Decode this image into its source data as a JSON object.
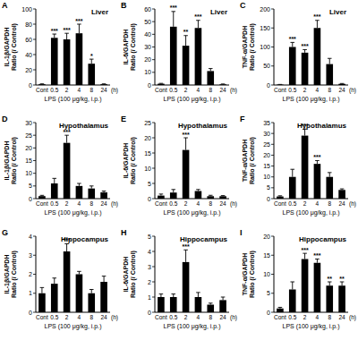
{
  "chart_data": [
    {
      "type": "bar",
      "panel": "A",
      "title": "Liver",
      "ylabel": [
        "IL-1β/GAPDH",
        "Ratio (/ Control)"
      ],
      "xlabel": "LPS (100 μg/kg, i.p.)",
      "x_unit": "(h)",
      "categories": [
        "Cont",
        "0.5",
        "2",
        "4",
        "8",
        "24"
      ],
      "values": [
        1,
        62,
        60,
        68,
        28,
        1
      ],
      "errors": [
        0.5,
        5,
        8,
        12,
        6,
        0.5
      ],
      "significance": [
        null,
        "***",
        "***",
        "***",
        "*",
        null
      ],
      "color": "#000000",
      "ylim": [
        0,
        100
      ],
      "yticks": [
        0,
        20,
        40,
        60,
        80,
        100
      ]
    },
    {
      "type": "bar",
      "panel": "B",
      "title": "Liver",
      "ylabel": [
        "IL-6/GAPDH",
        "Ratio (/ Control)"
      ],
      "xlabel": "LPS (100 μg/kg, i.p.)",
      "x_unit": "(h)",
      "categories": [
        "Cont",
        "0.5",
        "2",
        "4",
        "8",
        "24"
      ],
      "values": [
        1,
        46,
        31,
        45,
        11,
        0.5
      ],
      "errors": [
        0.3,
        12,
        8,
        6,
        2,
        0.3
      ],
      "significance": [
        null,
        "***",
        "**",
        "***",
        null,
        null
      ],
      "color": "#000000",
      "ylim": [
        0,
        60
      ],
      "yticks": [
        0,
        10,
        20,
        30,
        40,
        50,
        60
      ]
    },
    {
      "type": "bar",
      "panel": "C",
      "title": "Liver",
      "ylabel": [
        "TNF-α/GAPDH",
        "Ratio (/ Control)"
      ],
      "xlabel": "LPS (100 μg/kg, i.p.)",
      "x_unit": "(h)",
      "categories": [
        "Cont",
        "0.5",
        "2",
        "4",
        "8",
        "24"
      ],
      "values": [
        1,
        100,
        85,
        150,
        55,
        3
      ],
      "errors": [
        0.5,
        12,
        8,
        20,
        15,
        1
      ],
      "significance": [
        null,
        "***",
        "***",
        "***",
        null,
        null
      ],
      "color": "#000000",
      "ylim": [
        0,
        200
      ],
      "yticks": [
        0,
        50,
        100,
        150,
        200
      ]
    },
    {
      "type": "bar",
      "panel": "D",
      "title": "Hypothalamus",
      "ylabel": [
        "IL-1β/GAPDH",
        "Ratio (/ Control)"
      ],
      "xlabel": "LPS (100 μg/kg, i.p.)",
      "x_unit": "(h)",
      "categories": [
        "Cont",
        "0.5",
        "2",
        "4",
        "8",
        "24"
      ],
      "values": [
        1,
        6,
        22,
        5,
        4,
        2.5
      ],
      "errors": [
        0.3,
        2,
        3,
        1,
        1,
        0.5
      ],
      "significance": [
        null,
        null,
        "***",
        null,
        null,
        null
      ],
      "color": "#000000",
      "ylim": [
        0,
        30
      ],
      "yticks": [
        0,
        5,
        10,
        15,
        20,
        25,
        30
      ]
    },
    {
      "type": "bar",
      "panel": "E",
      "title": "Hypothalamus",
      "ylabel": [
        "IL-6/GAPDH",
        "Ratio (/ Control)"
      ],
      "xlabel": "LPS (100 μg/kg, i.p.)",
      "x_unit": "(h)",
      "categories": [
        "Cont",
        "0.5",
        "2",
        "4",
        "8",
        "24"
      ],
      "values": [
        1,
        2,
        16,
        2.5,
        0.8,
        0.8
      ],
      "errors": [
        0.5,
        1,
        4,
        0.5,
        0.3,
        0.2
      ],
      "significance": [
        null,
        null,
        "***",
        null,
        null,
        null
      ],
      "color": "#000000",
      "ylim": [
        0,
        25
      ],
      "yticks": [
        0,
        5,
        10,
        15,
        20,
        25
      ]
    },
    {
      "type": "bar",
      "panel": "F",
      "title": "Hypothalamus",
      "ylabel": [
        "TNF-α/GAPDH",
        "Ratio (/ Control)"
      ],
      "xlabel": "LPS (100 μg/kg, i.p.)",
      "x_unit": "(h)",
      "categories": [
        "Cont",
        "0.5",
        "2",
        "4",
        "8",
        "24"
      ],
      "values": [
        1,
        10,
        29,
        16,
        10,
        4
      ],
      "errors": [
        0.3,
        3.5,
        3,
        1.5,
        2,
        0.5
      ],
      "significance": [
        null,
        null,
        "***",
        "***",
        null,
        null
      ],
      "color": "#000000",
      "ylim": [
        0,
        35
      ],
      "yticks": [
        0,
        5,
        10,
        15,
        20,
        25,
        30,
        35
      ]
    },
    {
      "type": "bar",
      "panel": "G",
      "title": "Hippocampus",
      "ylabel": [
        "IL-1β/GAPDH",
        "Ratio (/ Control)"
      ],
      "xlabel": "LPS (100 μg/kg, i.p.)",
      "x_unit": "(h)",
      "categories": [
        "Cont",
        "0.5",
        "2",
        "4",
        "8",
        "24"
      ],
      "values": [
        1,
        1.5,
        3.2,
        2,
        1,
        1.6
      ],
      "errors": [
        0.3,
        0.3,
        0.4,
        0.15,
        0.2,
        0.3
      ],
      "significance": [
        null,
        null,
        "***",
        null,
        null,
        null
      ],
      "color": "#000000",
      "ylim": [
        0,
        4
      ],
      "yticks": [
        0,
        1,
        2,
        3,
        4
      ]
    },
    {
      "type": "bar",
      "panel": "H",
      "title": "Hippocampus",
      "ylabel": [
        "IL-6/GAPDH",
        "Ratio (/ Control)"
      ],
      "xlabel": "LPS (100 μg/kg, i.p.)",
      "x_unit": "(h)",
      "categories": [
        "Cont",
        "0.5",
        "2",
        "4",
        "8",
        "24"
      ],
      "values": [
        1,
        1,
        3.3,
        1,
        0.5,
        0.8
      ],
      "errors": [
        0.2,
        0.2,
        0.8,
        0.3,
        0.1,
        0.2
      ],
      "significance": [
        null,
        null,
        "***",
        null,
        null,
        null
      ],
      "color": "#000000",
      "ylim": [
        0,
        5
      ],
      "yticks": [
        0,
        1,
        2,
        3,
        4,
        5
      ]
    },
    {
      "type": "bar",
      "panel": "I",
      "title": "Hippocampus",
      "ylabel": [
        "TNF-α/GAPDH",
        "Ratio (/ Control)"
      ],
      "xlabel": "LPS (100 μg/kg, i.p.)",
      "x_unit": "(h)",
      "categories": [
        "Cont",
        "0.5",
        "2",
        "4",
        "8",
        "24"
      ],
      "values": [
        1,
        6,
        14,
        13,
        7,
        7
      ],
      "errors": [
        0.3,
        2,
        1.5,
        1,
        1,
        1
      ],
      "significance": [
        null,
        null,
        "***",
        "***",
        "**",
        "**"
      ],
      "color": "#000000",
      "ylim": [
        0,
        20
      ],
      "yticks": [
        0,
        5,
        10,
        15,
        20
      ]
    }
  ]
}
